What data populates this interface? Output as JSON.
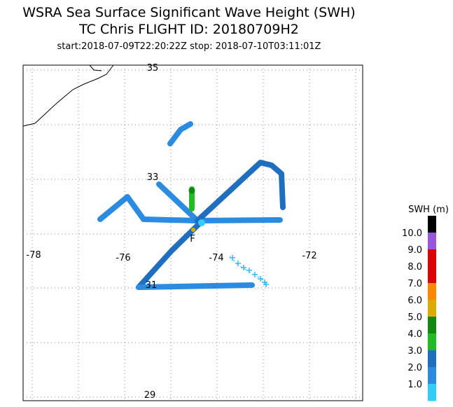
{
  "header": {
    "title": "WSRA Sea Surface Significant Wave Height (SWH)",
    "subtitle": "TC Chris FLIGHT ID: 20180709H2",
    "time_range": "start:2018-07-09T22:20:22Z stop: 2018-07-10T03:11:01Z"
  },
  "map": {
    "lat_labels": [
      "35",
      "33",
      "31",
      "29"
    ],
    "lon_labels": [
      "-78",
      "-76",
      "-74",
      "-72"
    ],
    "marker": "F"
  },
  "colorbar": {
    "title": "SWH (m)",
    "labels": [
      "10.0",
      "9.0",
      "8.0",
      "7.0",
      "6.0",
      "5.0",
      "4.0",
      "3.0",
      "2.0",
      "1.0"
    ],
    "colors": [
      "#000000",
      "#9955dd",
      "#dd0000",
      "#dd0000",
      "#ff8800",
      "#ddaa00",
      "#118811",
      "#22bb22",
      "#1f6fc0",
      "#2b8be0",
      "#33ccff"
    ]
  }
}
